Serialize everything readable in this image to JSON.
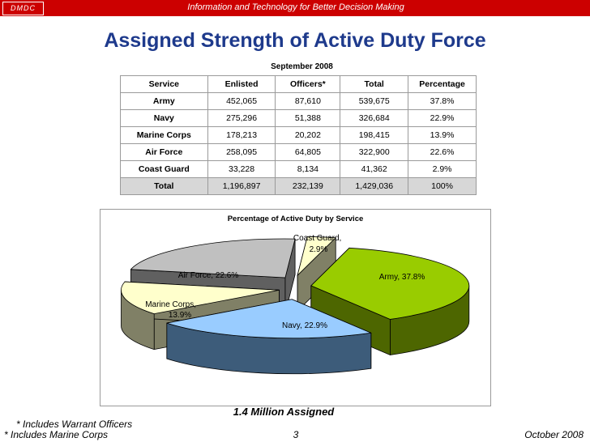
{
  "header": {
    "logo": "DMDC",
    "tagline": "Information and Technology for Better Decision Making"
  },
  "title": "Assigned Strength of Active Duty Force",
  "subtitle": "September 2008",
  "table": {
    "columns": [
      "Service",
      "Enlisted",
      "Officers*",
      "Total",
      "Percentage"
    ],
    "rows": [
      [
        "Army",
        "452,065",
        "87,610",
        "539,675",
        "37.8%"
      ],
      [
        "Navy",
        "275,296",
        "51,388",
        "326,684",
        "22.9%"
      ],
      [
        "Marine Corps",
        "178,213",
        "20,202",
        "198,415",
        "13.9%"
      ],
      [
        "Air Force",
        "258,095",
        "64,805",
        "322,900",
        "22.6%"
      ],
      [
        "Coast Guard",
        "33,228",
        "8,134",
        "41,362",
        "2.9%"
      ]
    ],
    "total_row": [
      "Total",
      "1,196,897",
      "232,139",
      "1,429,036",
      "100%"
    ]
  },
  "chart_data": {
    "type": "pie",
    "title": "Percentage of Active Duty by Service",
    "slices": [
      {
        "name": "Army",
        "value": 37.8,
        "label": "Army, 37.8%",
        "color": "#99cc00",
        "side": "#4d6600"
      },
      {
        "name": "Navy",
        "value": 22.9,
        "label": "Navy, 22.9%",
        "color": "#99ccff",
        "side": "#3d5c7a"
      },
      {
        "name": "Marine Corps",
        "value": 13.9,
        "label1": "Marine Corps,",
        "label2": "13.9%",
        "color": "#ffffcc",
        "side": "#808066"
      },
      {
        "name": "Air Force",
        "value": 22.6,
        "label": "Air Force, 22.6%",
        "color": "#c0c0c0",
        "side": "#606060"
      },
      {
        "name": "Coast Guard",
        "value": 2.9,
        "label1": "Coast Guard,",
        "label2": "2.9%",
        "color": "#ffffcc",
        "side": "#808066"
      }
    ]
  },
  "caption": "1.4 Million Assigned",
  "footnotes": {
    "officers": "*  Includes Warrant Officers",
    "marines": "* Includes Marine Corps"
  },
  "footer": {
    "page": "3",
    "date": "October 2008"
  }
}
